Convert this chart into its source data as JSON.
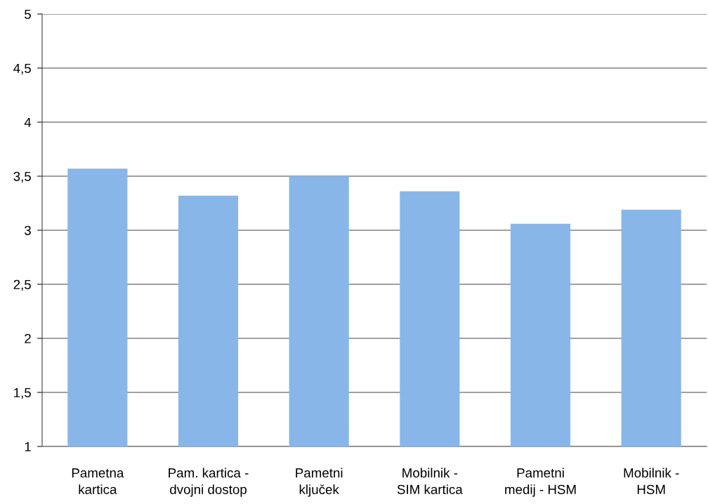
{
  "chart_data": {
    "type": "bar",
    "categories": [
      "Pametna\nkartica",
      "Pam. kartica -\ndvojni dostop",
      "Pametni\nključek",
      "Mobilnik -\nSIM kartica",
      "Pametni\nmedij - HSM",
      "Mobilnik -\nHSM"
    ],
    "values": [
      3.57,
      3.32,
      3.5,
      3.36,
      3.06,
      3.19
    ],
    "color": "#88b6e8",
    "ylim": [
      1,
      5
    ],
    "yticks": [
      1,
      {
        "value": 1.5,
        "label": "1,5"
      },
      2,
      {
        "value": 2.5,
        "label": "2,5"
      },
      3,
      {
        "value": 3.5,
        "label": "3,5"
      },
      4,
      {
        "value": 4.5,
        "label": "4,5"
      },
      5
    ],
    "grid": "y"
  }
}
